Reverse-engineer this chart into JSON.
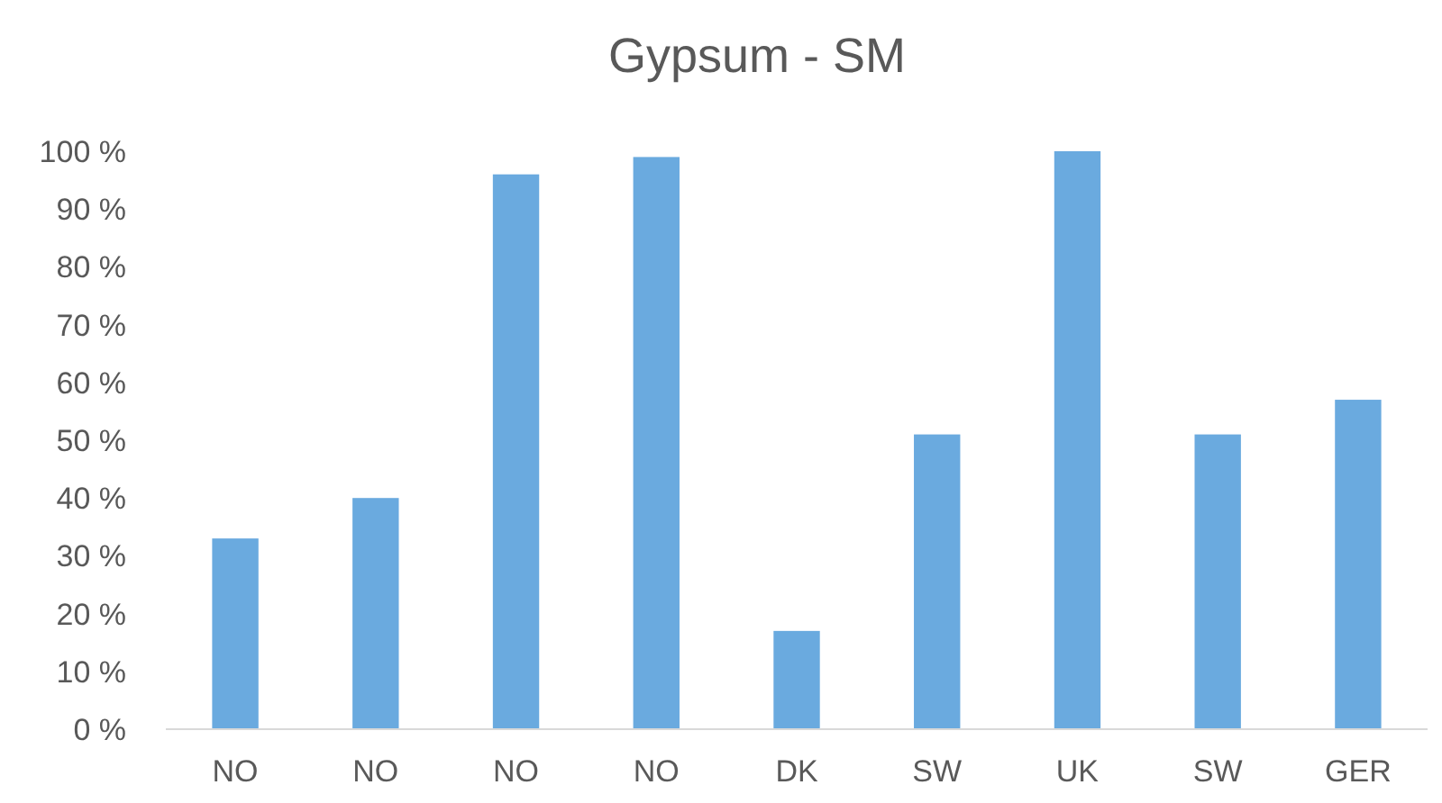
{
  "chart_data": {
    "type": "bar",
    "title": "Gypsum - SM",
    "categories": [
      "NO",
      "NO",
      "NO",
      "NO",
      "DK",
      "SW",
      "UK",
      "SW",
      "GER"
    ],
    "values": [
      33,
      40,
      96,
      99,
      17,
      51,
      100,
      51,
      57
    ],
    "color": "#6aaadf",
    "ylim": [
      0,
      100
    ],
    "yticks": [
      {
        "value": 0,
        "label": "0 %"
      },
      {
        "value": 10,
        "label": "10 %"
      },
      {
        "value": 20,
        "label": "20 %"
      },
      {
        "value": 30,
        "label": "30 %"
      },
      {
        "value": 40,
        "label": "40 %"
      },
      {
        "value": 50,
        "label": "50 %"
      },
      {
        "value": 60,
        "label": "60 %"
      },
      {
        "value": 70,
        "label": "70 %"
      },
      {
        "value": 80,
        "label": "80 %"
      },
      {
        "value": 90,
        "label": "90 %"
      },
      {
        "value": 100,
        "label": "100 %"
      }
    ],
    "grid": false
  }
}
